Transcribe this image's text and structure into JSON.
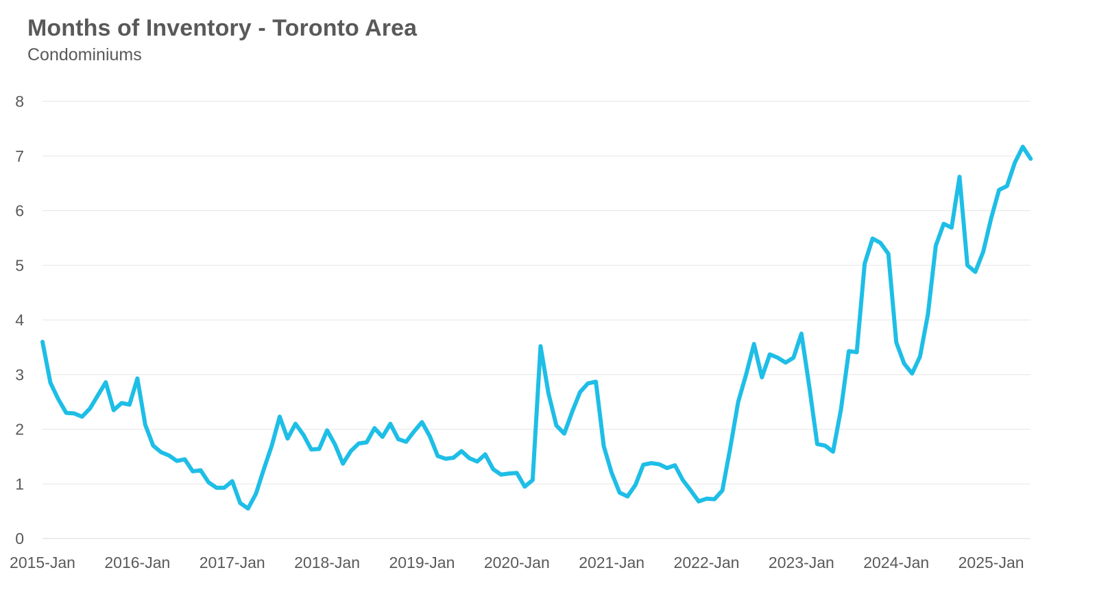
{
  "title": "Months of Inventory - Toronto Area",
  "subtitle": "Condominiums",
  "chart_data": {
    "type": "line",
    "title": "Months of Inventory - Toronto Area",
    "subtitle": "Condominiums",
    "xlabel": "",
    "ylabel": "",
    "ylim": [
      0,
      8
    ],
    "yticks": [
      0,
      1,
      2,
      3,
      4,
      5,
      6,
      7,
      8
    ],
    "grid": true,
    "legend": "none",
    "x_start": "2015-Jan",
    "x_tick_labels": [
      "2015-Jan",
      "2016-Jan",
      "2017-Jan",
      "2018-Jan",
      "2019-Jan",
      "2020-Jan",
      "2021-Jan",
      "2022-Jan",
      "2023-Jan",
      "2024-Jan",
      "2025-Jan"
    ],
    "color": "#1ebee6",
    "series": [
      {
        "values": [
          3.6,
          2.85,
          2.55,
          2.3,
          2.29,
          2.23,
          2.38,
          2.62,
          2.86,
          2.35,
          2.48,
          2.45,
          2.93,
          2.08,
          1.7,
          1.58,
          1.52,
          1.42,
          1.45,
          1.23,
          1.25,
          1.03,
          0.93,
          0.93,
          1.05,
          0.65,
          0.55,
          0.82,
          1.27,
          1.7,
          2.23,
          1.83,
          2.1,
          1.9,
          1.63,
          1.64,
          1.98,
          1.72,
          1.37,
          1.6,
          1.74,
          1.76,
          2.02,
          1.86,
          2.1,
          1.82,
          1.77,
          1.96,
          2.13,
          1.87,
          1.51,
          1.46,
          1.48,
          1.6,
          1.47,
          1.41,
          1.54,
          1.27,
          1.17,
          1.19,
          1.2,
          0.95,
          1.07,
          3.52,
          2.66,
          2.07,
          1.92,
          2.32,
          2.68,
          2.84,
          2.87,
          1.69,
          1.2,
          0.84,
          0.77,
          0.98,
          1.35,
          1.38,
          1.36,
          1.29,
          1.34,
          1.07,
          0.88,
          0.68,
          0.73,
          0.72,
          0.88,
          1.66,
          2.5,
          3.0,
          3.56,
          2.95,
          3.37,
          3.31,
          3.22,
          3.31,
          3.75,
          2.78,
          1.73,
          1.7,
          1.59,
          2.36,
          3.43,
          3.41,
          5.03,
          5.49,
          5.41,
          5.21,
          3.59,
          3.2,
          3.02,
          3.33,
          4.1,
          5.36,
          5.76,
          5.69,
          6.62,
          5.0,
          4.88,
          5.25,
          5.86,
          6.38,
          6.45,
          6.88,
          7.17,
          6.95
        ]
      }
    ]
  }
}
